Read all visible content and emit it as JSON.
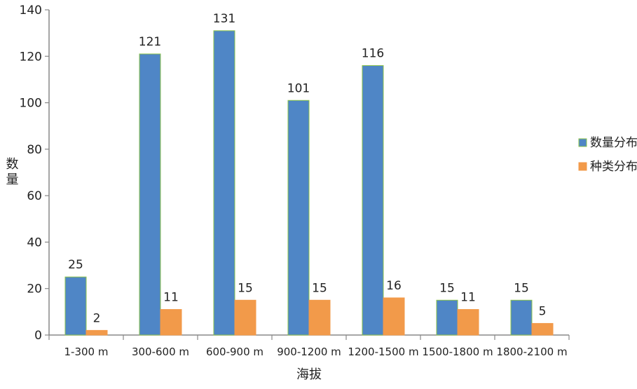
{
  "chart_data": {
    "type": "bar",
    "xlabel": "海拔",
    "ylabel": "数量",
    "categories": [
      "1-300 m",
      "300-600 m",
      "600-900 m",
      "900-1200 m",
      "1200-1500 m",
      "1500-1800 m",
      "1800-2100 m"
    ],
    "series": [
      {
        "name": "数量分布",
        "values": [
          25,
          121,
          131,
          101,
          116,
          15,
          15
        ],
        "color": "#4f86c6",
        "stroke": "#8bc34a"
      },
      {
        "name": "种类分布",
        "values": [
          2,
          11,
          15,
          15,
          16,
          11,
          5
        ],
        "color": "#f29a4a",
        "stroke": "#f29a4a"
      }
    ],
    "ylim": [
      0,
      140
    ],
    "yticks": [
      0,
      20,
      40,
      60,
      80,
      100,
      120,
      140
    ],
    "grid": false,
    "legend": "right"
  }
}
